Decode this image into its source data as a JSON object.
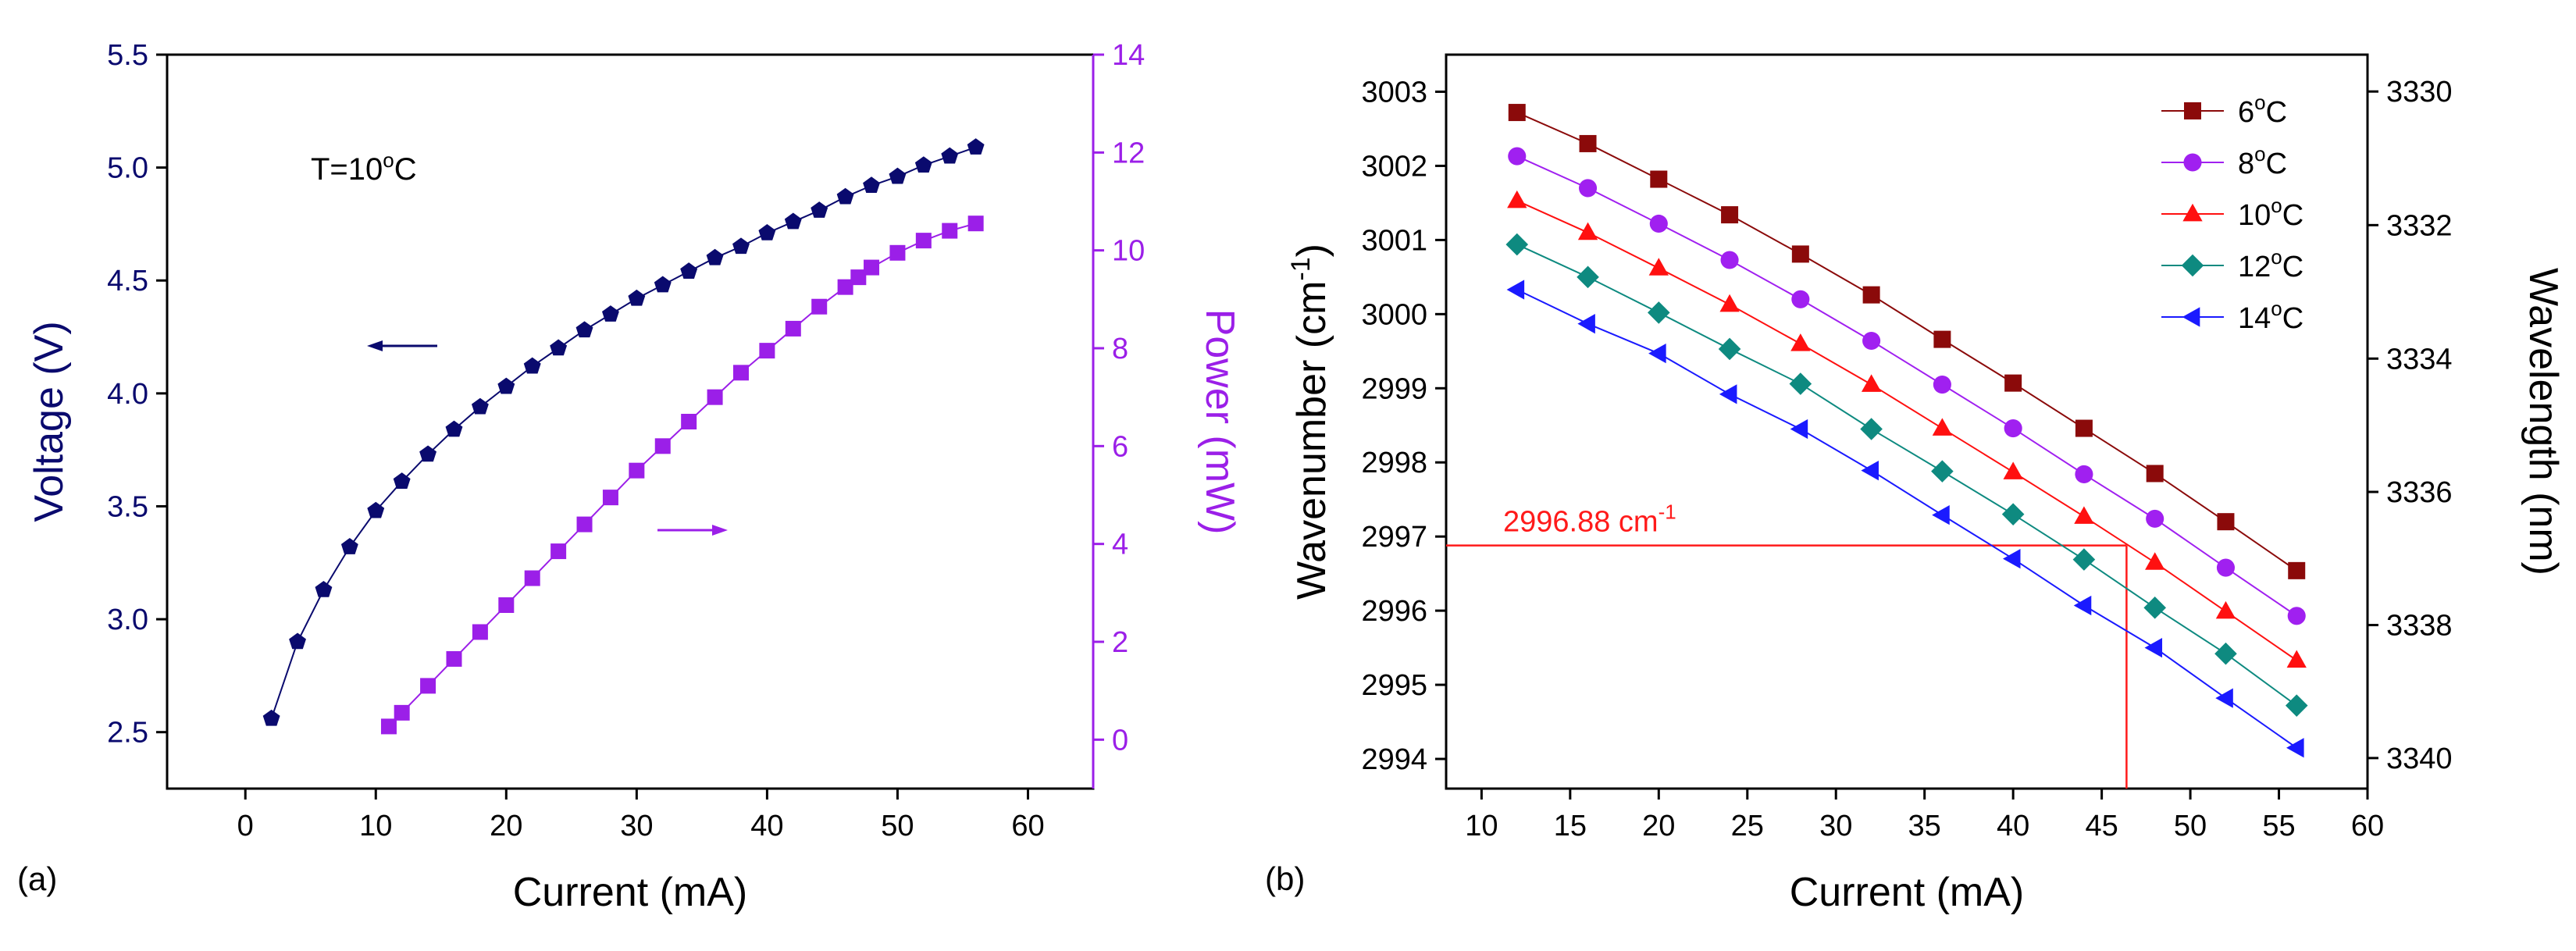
{
  "figure": {
    "panel_a_label": "(a)",
    "panel_b_label": "(b)"
  },
  "colors": {
    "voltage": "#0a0a6e",
    "power": "#9b1fe8",
    "frame": "#000000",
    "annotation": "#ff1a1a"
  },
  "chart_data": [
    {
      "panel": "(a)",
      "type": "scatter",
      "title": "",
      "xlabel": "Current (mA)",
      "xlim": [
        -6,
        65
      ],
      "xticks": [
        "0",
        "10",
        "20",
        "30",
        "40",
        "50",
        "60"
      ],
      "annotation": {
        "text": "T=10°C",
        "prefix": "T=10",
        "sup": "o",
        "suffix": "C"
      },
      "left_axis": {
        "label": "Voltage (V)",
        "ylim": [
          2.25,
          5.5
        ],
        "ticks": [
          "2.5",
          "3.0",
          "3.5",
          "4.0",
          "4.5",
          "5.0",
          "5.5"
        ]
      },
      "right_axis": {
        "label": "Power (mW)",
        "ylim": [
          -1.0,
          14.0
        ],
        "ticks": [
          "0",
          "2",
          "4",
          "6",
          "8",
          "10",
          "12",
          "14"
        ]
      },
      "series": [
        {
          "name": "Voltage",
          "axis": "left",
          "marker": "pentagon",
          "arrow": "left",
          "x": [
            2,
            4,
            6,
            8,
            10,
            12,
            14,
            16,
            18,
            20,
            22,
            24,
            26,
            28,
            30,
            32,
            34,
            36,
            38,
            40,
            42,
            44,
            46,
            48,
            50,
            52,
            54,
            56
          ],
          "y": [
            2.56,
            2.9,
            3.13,
            3.32,
            3.48,
            3.61,
            3.73,
            3.84,
            3.94,
            4.03,
            4.12,
            4.2,
            4.28,
            4.35,
            4.42,
            4.48,
            4.54,
            4.6,
            4.65,
            4.71,
            4.76,
            4.81,
            4.87,
            4.92,
            4.96,
            5.01,
            5.05,
            5.09
          ]
        },
        {
          "name": "Power",
          "axis": "right",
          "marker": "square",
          "arrow": "right",
          "x": [
            11,
            12,
            14,
            16,
            18,
            20,
            22,
            24,
            26,
            28,
            30,
            32,
            34,
            36,
            38,
            40,
            42,
            44,
            46,
            47,
            48,
            50,
            52,
            54,
            56
          ],
          "y": [
            0.27,
            0.55,
            1.1,
            1.65,
            2.2,
            2.75,
            3.3,
            3.85,
            4.4,
            4.95,
            5.5,
            6.0,
            6.5,
            7.0,
            7.5,
            7.95,
            8.4,
            8.85,
            9.25,
            9.45,
            9.65,
            9.95,
            10.2,
            10.4,
            10.55
          ]
        }
      ]
    },
    {
      "panel": "(b)",
      "type": "line",
      "title": "",
      "xlabel": "Current (mA)",
      "xlim": [
        8,
        60
      ],
      "xticks": [
        "10",
        "15",
        "20",
        "25",
        "30",
        "35",
        "40",
        "45",
        "50",
        "55",
        "60"
      ],
      "left_axis": {
        "label": "Wavenumber (cm⁻¹)",
        "label_main": "Wavenumber (cm",
        "label_sup": "-1",
        "label_tail": ")",
        "ylim": [
          2993.6,
          3003.5
        ],
        "ticks": [
          "2994",
          "2995",
          "2996",
          "2997",
          "2998",
          "2999",
          "3000",
          "3001",
          "3002",
          "3003"
        ]
      },
      "right_axis": {
        "label": "Wavelength (nm)",
        "ticks": [
          "3330",
          "3332",
          "3334",
          "3336",
          "3338",
          "3340"
        ]
      },
      "legend": {
        "placement": "top-right"
      },
      "annotation": {
        "text": "2996.88 cm⁻¹",
        "main": "2996.88 cm",
        "sup": "-1",
        "y_value": 2996.88,
        "x_value": 46.4
      },
      "x": [
        12,
        16,
        20,
        24,
        28,
        32,
        36,
        40,
        44,
        48,
        52,
        56
      ],
      "series": [
        {
          "name": "6°C",
          "label_main": "6",
          "color": "#8b0a0a",
          "marker": "square",
          "values": [
            3002.72,
            3002.3,
            3001.82,
            3001.34,
            3000.81,
            3000.26,
            2999.66,
            2999.07,
            2998.46,
            2997.85,
            2997.2,
            2996.54
          ]
        },
        {
          "name": "8°C",
          "label_main": "8",
          "color": "#a020f0",
          "marker": "circle",
          "values": [
            3002.13,
            3001.7,
            3001.22,
            3000.73,
            3000.2,
            2999.64,
            2999.05,
            2998.46,
            2997.84,
            2997.24,
            2996.58,
            2995.93
          ]
        },
        {
          "name": "10°C",
          "label_main": "10",
          "color": "#ff1010",
          "marker": "triangle-up",
          "values": [
            3001.53,
            3001.1,
            3000.62,
            3000.13,
            2999.6,
            2999.05,
            2998.46,
            2997.87,
            2997.27,
            2996.65,
            2995.99,
            2995.33
          ]
        },
        {
          "name": "12°C",
          "label_main": "12",
          "color": "#0e8a80",
          "marker": "diamond",
          "values": [
            3000.94,
            3000.5,
            3000.02,
            2999.53,
            2999.06,
            2998.45,
            2997.88,
            2997.3,
            2996.69,
            2996.04,
            2995.42,
            2994.72
          ]
        },
        {
          "name": "14°C",
          "label_main": "14",
          "color": "#1a1aff",
          "marker": "triangle-left",
          "values": [
            3000.33,
            2999.87,
            2999.47,
            2998.92,
            2998.45,
            2997.89,
            2997.29,
            2996.7,
            2996.07,
            2995.5,
            2994.82,
            2994.15
          ]
        }
      ]
    }
  ]
}
